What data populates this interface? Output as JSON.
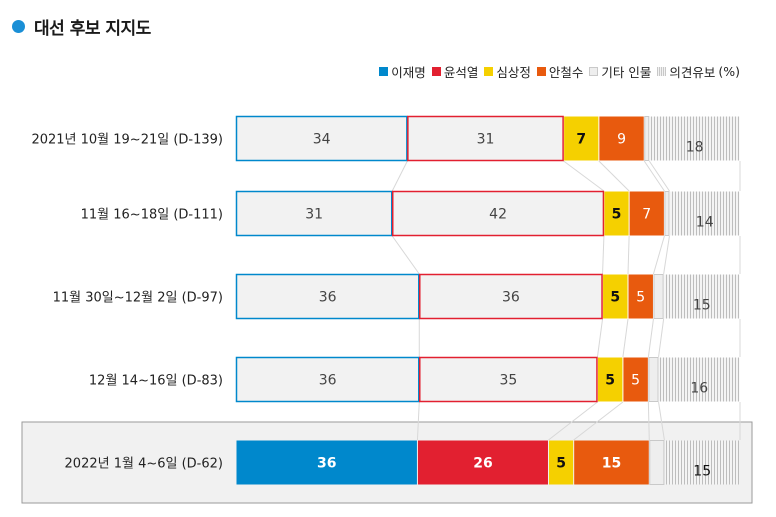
{
  "title": "대선 후보 지지도",
  "legend": {
    "items": [
      {
        "label": "이재명",
        "color": "#0088cc",
        "icon": "square-swatch"
      },
      {
        "label": "윤석열",
        "color": "#e22030",
        "icon": "square-swatch"
      },
      {
        "label": "심상정",
        "color": "#f5d000",
        "icon": "square-swatch"
      },
      {
        "label": "안철수",
        "color": "#e85a0e",
        "icon": "square-swatch"
      },
      {
        "label": "기타 인물",
        "color": "#eeeeee",
        "icon": "square-swatch"
      },
      {
        "label": "의견유보",
        "color": "#cccccc",
        "icon": "hatched-swatch"
      }
    ],
    "suffix": "(%)"
  },
  "chart_data": {
    "type": "bar",
    "orientation": "horizontal-stacked",
    "categories": [
      "2021년 10월 19~21일 (D-139)",
      "11월 16~18일 (D-111)",
      "11월 30일~12월 2일 (D-97)",
      "12월 14~16일 (D-83)",
      "2022년 1월 4~6일 (D-62)"
    ],
    "series": [
      {
        "name": "이재명",
        "values": [
          34,
          31,
          36,
          36,
          36
        ],
        "color": "#0088cc"
      },
      {
        "name": "윤석열",
        "values": [
          31,
          42,
          36,
          35,
          26
        ],
        "color": "#e22030"
      },
      {
        "name": "심상정",
        "values": [
          7,
          5,
          5,
          5,
          5
        ],
        "color": "#f5d000"
      },
      {
        "name": "안철수",
        "values": [
          9,
          7,
          5,
          5,
          15
        ],
        "color": "#e85a0e"
      },
      {
        "name": "기타 인물",
        "values": [
          1,
          1,
          2,
          2,
          3
        ],
        "color": "#eeeeee"
      },
      {
        "name": "의견유보",
        "values": [
          18,
          14,
          15,
          16,
          15
        ],
        "color": "#cccccc",
        "pattern": "hatched"
      }
    ],
    "highlighted_category": "2022년 1월 4~6일 (D-62)",
    "connector_lines": true,
    "grid": false,
    "legend_position": "top-right",
    "unit": "%"
  }
}
